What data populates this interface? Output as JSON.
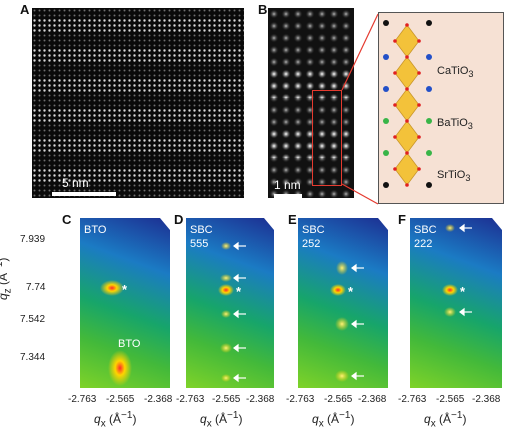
{
  "panels": {
    "A": {
      "label": "A",
      "scale": "5 nm"
    },
    "B": {
      "label": "B",
      "scale": "1 nm"
    },
    "C": {
      "label": "C",
      "tag": "BTO",
      "peak_tag": "BTO"
    },
    "D": {
      "label": "D",
      "tag": "SBC",
      "sub": "555"
    },
    "E": {
      "label": "E",
      "tag": "SBC",
      "sub": "252"
    },
    "F": {
      "label": "F",
      "tag": "SBC",
      "sub": "222"
    }
  },
  "schematic_labels": [
    "CaTiO3",
    "BaTiO3",
    "SrTiO3"
  ],
  "y_ticks": [
    "7.939",
    "7.74",
    "7.542",
    "7.344"
  ],
  "x_ticks": [
    "-2.763",
    "-2.565",
    "-2.368"
  ],
  "x_axis_label": "qx (Å⁻¹)",
  "y_axis_label": "qz (Å⁻¹)",
  "star": "*",
  "colors": {
    "schematic_bg": "#f6e1d4",
    "arrow": "#ffffff",
    "octahedra": "#f3c23a",
    "red_box": "#e53a2f"
  }
}
